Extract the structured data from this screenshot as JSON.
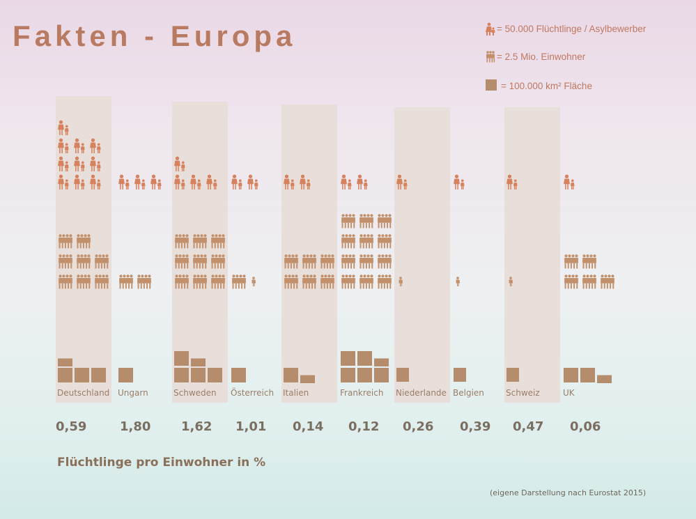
{
  "title": "Fakten - Europa",
  "legend": {
    "refugee": "= 50.000 Flüchtlinge / Asylbewerber",
    "population": "= 2.5 Mio. Einwohner",
    "area": "= 100.000 km² Fläche"
  },
  "colors": {
    "refugee": "#d6825e",
    "population": "#c2916c",
    "area": "#b58d6c",
    "column_band": "#e9dfda"
  },
  "chart_data": {
    "type": "table",
    "units": {
      "refugees": "50.000 Flüchtlinge / Asylbewerber",
      "population": "2.5 Mio. Einwohner",
      "area": "100.000 km² Fläche"
    },
    "categories": [
      "Deutschland",
      "Ungarn",
      "Schweden",
      "Österreich",
      "Italien",
      "Frankreich",
      "Niederlande",
      "Belgien",
      "Schweiz",
      "UK"
    ],
    "refugees_icons": [
      10,
      3,
      4,
      2,
      2,
      2,
      1,
      1,
      1,
      1
    ],
    "population_icons": [
      8,
      2,
      9,
      1.5,
      6,
      12,
      0.5,
      0.5,
      0.5,
      5
    ],
    "area_squares": [
      3.5,
      1,
      4.5,
      1,
      1.5,
      5.5,
      0.5,
      0.5,
      0.5,
      2.5
    ],
    "refugees_per_population_percent": [
      "0,59",
      "1,80",
      "1,62",
      "1,01",
      "0,14",
      "0,12",
      "0,26",
      "0,39",
      "0,47",
      "0,06"
    ],
    "shaded_columns": [
      "Deutschland",
      "Schweden",
      "Italien",
      "Niederlande",
      "Schweiz"
    ]
  },
  "footer": {
    "metric_title": "Flüchtlinge pro Einwohner in %",
    "source": "(eigene Darstellung nach Eurostat 2015)"
  }
}
